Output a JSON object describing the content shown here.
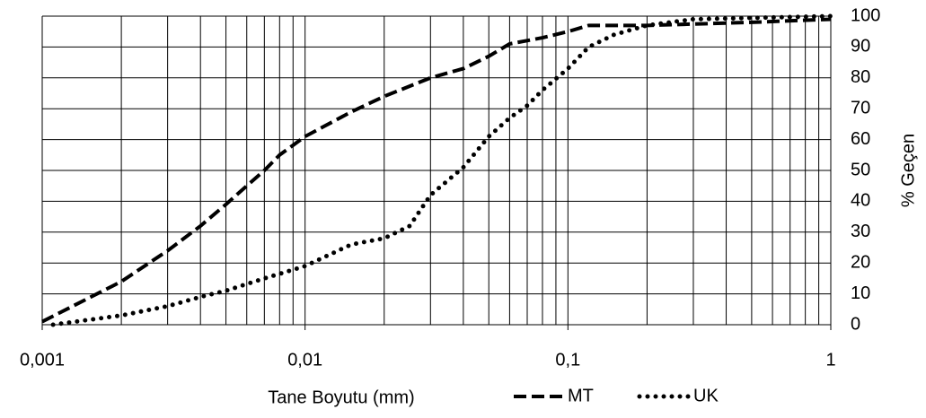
{
  "chart_data": {
    "type": "line",
    "xlabel": "Tane Boyutu (mm)",
    "ylabel": "% Geçen",
    "xscale": "log",
    "xlim": [
      0.001,
      1
    ],
    "xticks": [
      {
        "value": 0.001,
        "label": "0,001"
      },
      {
        "value": 0.01,
        "label": "0,01"
      },
      {
        "value": 0.1,
        "label": "0,1"
      },
      1
    ],
    "minor_xticks": [
      0.002,
      0.003,
      0.004,
      0.005,
      0.006,
      0.007,
      0.008,
      0.009,
      0.02,
      0.03,
      0.04,
      0.05,
      0.06,
      0.07,
      0.08,
      0.09,
      0.2,
      0.3,
      0.4,
      0.5,
      0.6,
      0.7,
      0.8,
      0.9
    ],
    "ylim": [
      0,
      100
    ],
    "yticks": [
      0,
      10,
      20,
      30,
      40,
      50,
      60,
      70,
      80,
      90,
      100
    ],
    "y_axis_side": "right",
    "grid": true,
    "legend": "bottom",
    "series": [
      {
        "name": "MT",
        "color": "#000000",
        "line_style": "dashed",
        "x": [
          0.001,
          0.002,
          0.003,
          0.004,
          0.005,
          0.006,
          0.007,
          0.008,
          0.01,
          0.015,
          0.02,
          0.03,
          0.04,
          0.05,
          0.06,
          0.08,
          0.1,
          0.12,
          0.2,
          0.5,
          1
        ],
        "values": [
          1,
          14,
          24,
          32,
          39,
          45,
          50,
          55,
          61,
          69,
          74,
          80,
          83,
          87,
          91,
          93,
          95,
          97,
          97,
          98,
          99
        ]
      },
      {
        "name": "UK",
        "color": "#000000",
        "line_style": "dotted",
        "x": [
          0.0011,
          0.002,
          0.003,
          0.004,
          0.005,
          0.007,
          0.01,
          0.015,
          0.02,
          0.025,
          0.03,
          0.04,
          0.05,
          0.06,
          0.07,
          0.08,
          0.1,
          0.12,
          0.15,
          0.2,
          0.3,
          1
        ],
        "values": [
          0,
          3,
          6,
          9,
          11,
          15,
          19,
          26,
          28,
          32,
          42,
          51,
          61,
          67,
          71,
          76,
          83,
          90,
          94,
          97,
          99,
          100
        ]
      }
    ]
  }
}
